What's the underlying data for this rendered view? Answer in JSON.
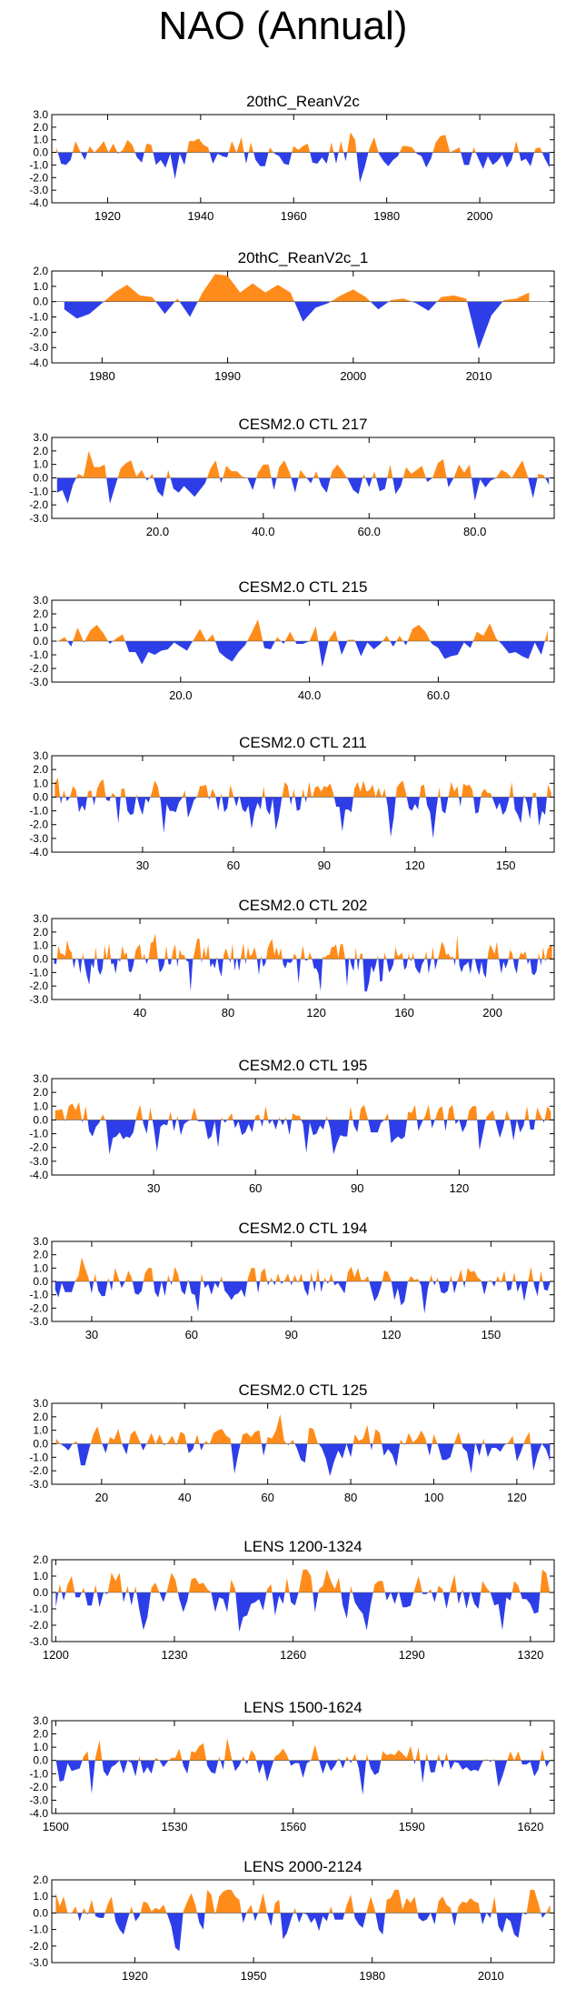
{
  "title": "NAO (Annual)",
  "colors": {
    "positive": "#ff8c1a",
    "negative": "#2d3ee8",
    "axis": "#000000"
  },
  "chart_data": [
    {
      "type": "area",
      "title": "20thC_ReanV2c",
      "xlim": [
        1908,
        2016
      ],
      "ylim": [
        -4,
        3
      ],
      "yticks": [
        3,
        2,
        1,
        0,
        -1,
        -2,
        -3,
        -4
      ],
      "ytick_labels": [
        "3.0",
        "2.0",
        "1.0",
        "0.0",
        "-1.0",
        "-2.0",
        "-3.0",
        "-4.0"
      ],
      "xticks": [
        1920,
        1940,
        1960,
        1980,
        2000
      ],
      "xtick_labels": [
        "1920",
        "1940",
        "1960",
        "1980",
        "2000"
      ],
      "n": 105,
      "seed": 11
    },
    {
      "type": "area",
      "title": "20thC_ReanV2c_1",
      "xlim": [
        1976,
        2016
      ],
      "ylim": [
        -4,
        2
      ],
      "yticks": [
        2,
        1,
        0,
        -1,
        -2,
        -3,
        -4
      ],
      "ytick_labels": [
        "2.0",
        "1.0",
        "0.0",
        "-1.0",
        "-2.0",
        "-3.0",
        "-4.0"
      ],
      "xticks": [
        1980,
        1990,
        2000,
        2010
      ],
      "xtick_labels": [
        "1980",
        "1990",
        "2000",
        "2010"
      ],
      "x": [
        1977,
        1978,
        1979,
        1980,
        1981,
        1982,
        1983,
        1984,
        1985,
        1986,
        1987,
        1988,
        1989,
        1990,
        1991,
        1992,
        1993,
        1994,
        1995,
        1996,
        1997,
        1998,
        1999,
        2000,
        2001,
        2002,
        2003,
        2004,
        2005,
        2006,
        2007,
        2008,
        2009,
        2010,
        2011,
        2012,
        2013,
        2014
      ],
      "values": [
        -0.5,
        -1.1,
        -0.8,
        -0.1,
        0.6,
        1.1,
        0.4,
        0.3,
        -0.8,
        0.2,
        -1.0,
        0.6,
        1.8,
        1.7,
        0.6,
        1.2,
        0.6,
        1.1,
        0.6,
        -1.3,
        -0.4,
        -0.1,
        0.4,
        0.8,
        0.3,
        -0.5,
        0.1,
        0.2,
        -0.1,
        -0.6,
        0.3,
        0.4,
        0.2,
        -3.1,
        -0.9,
        0.1,
        0.2,
        0.6
      ]
    },
    {
      "type": "area",
      "title": "CESM2.0 CTL 217",
      "xlim": [
        0,
        95
      ],
      "ylim": [
        -3,
        3
      ],
      "yticks": [
        3,
        2,
        1,
        0,
        -1,
        -2,
        -3
      ],
      "ytick_labels": [
        "3.0",
        "2.0",
        "1.0",
        "0.0",
        "-1.0",
        "-2.0",
        "-3.0"
      ],
      "xticks": [
        20,
        40,
        60,
        80
      ],
      "xtick_labels": [
        "20.0",
        "40.0",
        "60.0",
        "80.0"
      ],
      "n": 94,
      "seed": 21
    },
    {
      "type": "area",
      "title": "CESM2.0 CTL 215",
      "xlim": [
        0,
        78
      ],
      "ylim": [
        -3,
        3
      ],
      "yticks": [
        3,
        2,
        1,
        0,
        -1,
        -2,
        -3
      ],
      "ytick_labels": [
        "3.0",
        "2.0",
        "1.0",
        "0.0",
        "-1.0",
        "-2.0",
        "-3.0"
      ],
      "xticks": [
        20,
        40,
        60
      ],
      "xtick_labels": [
        "20.0",
        "40.0",
        "60.0"
      ],
      "n": 77,
      "seed": 32
    },
    {
      "type": "area",
      "title": "CESM2.0 CTL 211",
      "xlim": [
        0,
        166
      ],
      "ylim": [
        -4,
        3
      ],
      "yticks": [
        3,
        2,
        1,
        0,
        -1,
        -2,
        -3,
        -4
      ],
      "ytick_labels": [
        "3.0",
        "2.0",
        "1.0",
        "0.0",
        "-1.0",
        "-2.0",
        "-3.0",
        "-4.0"
      ],
      "xticks": [
        30,
        60,
        90,
        120,
        150
      ],
      "xtick_labels": [
        "30",
        "60",
        "90",
        "120",
        "150"
      ],
      "n": 165,
      "seed": 43
    },
    {
      "type": "area",
      "title": "CESM2.0 CTL 202",
      "xlim": [
        0,
        228
      ],
      "ylim": [
        -3,
        3
      ],
      "yticks": [
        3,
        2,
        1,
        0,
        -1,
        -2,
        -3
      ],
      "ytick_labels": [
        "3.0",
        "2.0",
        "1.0",
        "0.0",
        "-1.0",
        "-2.0",
        "-3.0"
      ],
      "xticks": [
        40,
        80,
        120,
        160,
        200
      ],
      "xtick_labels": [
        "40",
        "80",
        "120",
        "160",
        "200"
      ],
      "n": 227,
      "seed": 54
    },
    {
      "type": "area",
      "title": "CESM2.0 CTL 195",
      "xlim": [
        0,
        148
      ],
      "ylim": [
        -4,
        3
      ],
      "yticks": [
        3,
        2,
        1,
        0,
        -1,
        -2,
        -3,
        -4
      ],
      "ytick_labels": [
        "3.0",
        "2.0",
        "1.0",
        "0.0",
        "-1.0",
        "-2.0",
        "-3.0",
        "-4.0"
      ],
      "xticks": [
        30,
        60,
        90,
        120
      ],
      "xtick_labels": [
        "30",
        "60",
        "90",
        "120"
      ],
      "n": 147,
      "seed": 65
    },
    {
      "type": "area",
      "title": "CESM2.0 CTL 194",
      "xlim": [
        18,
        169
      ],
      "ylim": [
        -3,
        3
      ],
      "yticks": [
        3,
        2,
        1,
        0,
        -1,
        -2,
        -3
      ],
      "ytick_labels": [
        "3.0",
        "2.0",
        "1.0",
        "0.0",
        "-1.0",
        "-2.0",
        "-3.0"
      ],
      "xticks": [
        30,
        60,
        90,
        120,
        150
      ],
      "xtick_labels": [
        "30",
        "60",
        "90",
        "120",
        "150"
      ],
      "n": 150,
      "seed": 76
    },
    {
      "type": "area",
      "title": "CESM2.0 CTL 125",
      "xlim": [
        8,
        129
      ],
      "ylim": [
        -3,
        3
      ],
      "yticks": [
        3,
        2,
        1,
        0,
        -1,
        -2,
        -3
      ],
      "ytick_labels": [
        "3.0",
        "2.0",
        "1.0",
        "0.0",
        "-1.0",
        "-2.0",
        "-3.0"
      ],
      "xticks": [
        20,
        40,
        60,
        80,
        100,
        120
      ],
      "xtick_labels": [
        "20",
        "40",
        "60",
        "80",
        "100",
        "120"
      ],
      "n": 120,
      "seed": 87
    },
    {
      "type": "area",
      "title": "LENS 1200-1324",
      "xlim": [
        1199,
        1326
      ],
      "ylim": [
        -3,
        2
      ],
      "yticks": [
        2,
        1,
        0,
        -1,
        -2,
        -3
      ],
      "ytick_labels": [
        "2.0",
        "1.0",
        "0.0",
        "-1.0",
        "-2.0",
        "-3.0"
      ],
      "xticks": [
        1200,
        1230,
        1260,
        1290,
        1320
      ],
      "xtick_labels": [
        "1200",
        "1230",
        "1260",
        "1290",
        "1320"
      ],
      "n": 125,
      "seed": 98
    },
    {
      "type": "area",
      "title": "LENS 1500-1624",
      "xlim": [
        1499,
        1626
      ],
      "ylim": [
        -4,
        3
      ],
      "yticks": [
        3,
        2,
        1,
        0,
        -1,
        -2,
        -3,
        -4
      ],
      "ytick_labels": [
        "3.0",
        "2.0",
        "1.0",
        "0.0",
        "-1.0",
        "-2.0",
        "-3.0",
        "-4.0"
      ],
      "xticks": [
        1500,
        1530,
        1560,
        1590,
        1620
      ],
      "xtick_labels": [
        "1500",
        "1530",
        "1560",
        "1590",
        "1620"
      ],
      "n": 125,
      "seed": 109
    },
    {
      "type": "area",
      "title": "LENS 2000-2124",
      "xlim": [
        1899,
        2026
      ],
      "ylim": [
        -3,
        2
      ],
      "yticks": [
        2,
        1,
        0,
        -1,
        -2,
        -3
      ],
      "ytick_labels": [
        "2.0",
        "1.0",
        "0.0",
        "-1.0",
        "-2.0",
        "-3.0"
      ],
      "xticks": [
        1920,
        1950,
        1980,
        2010
      ],
      "xtick_labels": [
        "1920",
        "1950",
        "1980",
        "2010"
      ],
      "n": 125,
      "seed": 120
    }
  ]
}
